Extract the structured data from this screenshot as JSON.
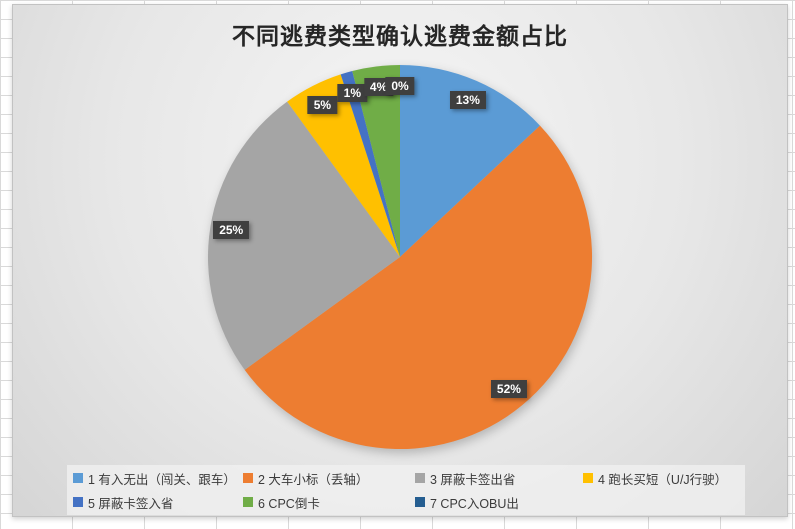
{
  "title": "不同逃费类型确认逃费金额占比",
  "chart_data": {
    "type": "pie",
    "title": "不同逃费类型确认逃费金额占比",
    "legend_position": "bottom",
    "start_angle_deg": 0,
    "direction": "clockwise",
    "segments": [
      {
        "label": "1 有入无出（闯关、跟车）",
        "value": 13,
        "display": "13%",
        "color": "#5B9BD5"
      },
      {
        "label": "2 大车小标（丢轴）",
        "value": 52,
        "display": "52%",
        "color": "#ED7D31"
      },
      {
        "label": "3 屏蔽卡签出省",
        "value": 25,
        "display": "25%",
        "color": "#A5A5A5"
      },
      {
        "label": "4 跑长买短（U/J行驶）",
        "value": 5,
        "display": "5%",
        "color": "#FFC000"
      },
      {
        "label": "5 屏蔽卡签入省",
        "value": 1,
        "display": "1%",
        "color": "#4472C4"
      },
      {
        "label": "6 CPC倒卡",
        "value": 4,
        "display": "4%",
        "color": "#70AD47"
      },
      {
        "label": "7 CPC入OBU出",
        "value": 0,
        "display": "0%",
        "color": "#255E91"
      }
    ],
    "data_label_style": {
      "background": "#3F3F3F",
      "text_color": "#FFFFFF"
    }
  }
}
